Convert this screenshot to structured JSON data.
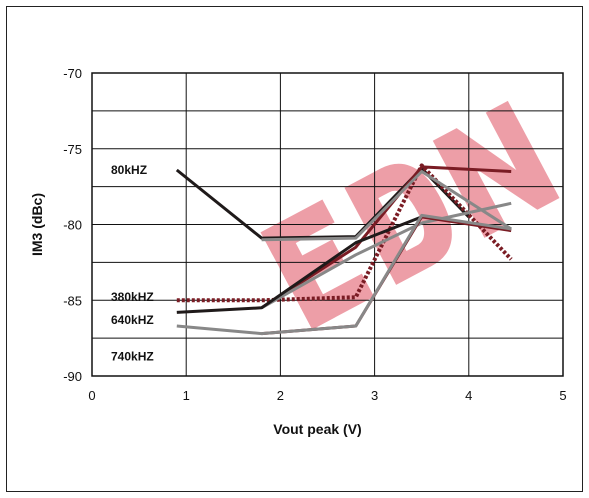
{
  "chart_data": {
    "type": "line",
    "title": "",
    "xlabel": "Vout peak (V)",
    "ylabel": "IM3 (dBc)",
    "xlim": [
      0,
      5
    ],
    "ylim": [
      -90,
      -70
    ],
    "xticks": [
      "0",
      "1",
      "2",
      "3",
      "4",
      "5"
    ],
    "yticks": [
      "-70",
      "-75",
      "-80",
      "-85",
      "-90"
    ],
    "grid": true,
    "series_labels": [
      "80kHZ",
      "380kHZ",
      "640kHZ",
      "740kHZ"
    ],
    "series": [
      {
        "color": "#1f1a1a",
        "style": "solid",
        "x": [
          0.9,
          1.8,
          2.8,
          3.5,
          4.0
        ],
        "y": [
          -76.4,
          -80.9,
          -80.8,
          -76.3,
          -79.5
        ]
      },
      {
        "color": "#7a1c24",
        "style": "solid",
        "x": [
          1.8,
          2.8,
          3.5,
          4.45
        ],
        "y": [
          -85.5,
          -81.5,
          -76.2,
          -76.5
        ]
      },
      {
        "color": "#7a1c24",
        "style": "dotted",
        "x": [
          0.9,
          1.8,
          2.8,
          3.5,
          4.45
        ],
        "y": [
          -85.0,
          -85.0,
          -84.8,
          -76.1,
          -82.3
        ]
      },
      {
        "color": "#888888",
        "style": "solid",
        "x": [
          1.8,
          2.8,
          3.5,
          4.45
        ],
        "y": [
          -81.0,
          -80.9,
          -76.5,
          -80.3
        ]
      },
      {
        "color": "#888888",
        "style": "solid",
        "x": [
          1.8,
          2.8,
          3.5,
          4.45
        ],
        "y": [
          -85.5,
          -82.0,
          -79.9,
          -78.6
        ]
      },
      {
        "color": "#1f1a1a",
        "style": "solid",
        "x": [
          0.9,
          1.8,
          2.8,
          3.5
        ],
        "y": [
          -85.8,
          -85.5,
          -81.2,
          -79.5
        ]
      },
      {
        "color": "#7a1c24",
        "style": "solid",
        "x": [
          1.8,
          2.8,
          3.5,
          4.45
        ],
        "y": [
          -87.2,
          -86.7,
          -79.5,
          -80.4
        ]
      },
      {
        "color": "#888888",
        "style": "solid",
        "x": [
          0.9,
          1.8,
          2.8,
          3.5,
          4.45
        ],
        "y": [
          -86.7,
          -87.2,
          -86.7,
          -79.4,
          -80.3
        ]
      }
    ],
    "watermark_text": "EDN",
    "watermark_color": "#e05060"
  }
}
